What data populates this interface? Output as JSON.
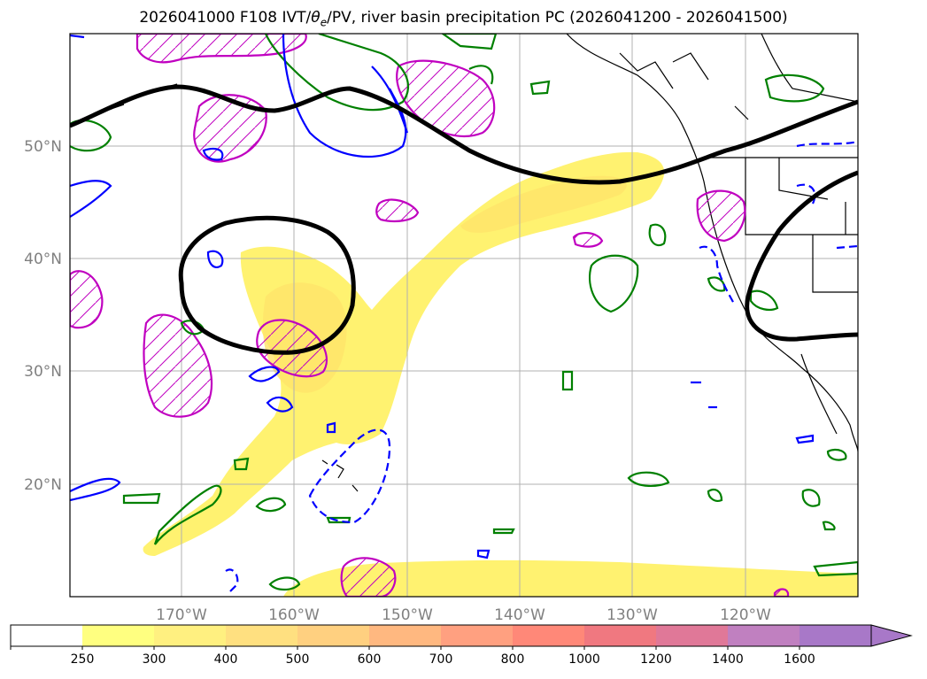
{
  "title": {
    "run": "2026041000 F108",
    "fields_prefix": "IVT/",
    "theta_symbol": "θ",
    "theta_subscript": "e",
    "fields_suffix": "/PV, river basin precipitation PC (2026041200 - 2026041500)"
  },
  "map": {
    "lon_labels": [
      "170°W",
      "160°W",
      "150°W",
      "140°W",
      "130°W",
      "120°W"
    ],
    "lat_labels": [
      "50°N",
      "40°N",
      "30°N",
      "20°N"
    ],
    "region": "North Pacific / West Coast of North America"
  },
  "colorbar": {
    "tick_labels": [
      "250",
      "300",
      "400",
      "500",
      "600",
      "700",
      "800",
      "1000",
      "1200",
      "1400",
      "1600"
    ],
    "colors": [
      "#ffffff",
      "#ffff80",
      "#fff080",
      "#ffe080",
      "#ffd080",
      "#ffb880",
      "#ffa080",
      "#ff8878",
      "#f07880",
      "#e07898",
      "#c080c0",
      "#a878c8"
    ],
    "extend": "max"
  },
  "colors": {
    "ivt_fill": "#fff270",
    "ivt_fill_inner": "#ffe36a",
    "pv_contour": "#000000",
    "theta_positive": "#0000ff",
    "theta_negative": "#0000ff",
    "green_contour": "#008000",
    "magenta_hatch": "#c000c0",
    "grid": "#b0b0b0",
    "tick_text": "#808080"
  }
}
